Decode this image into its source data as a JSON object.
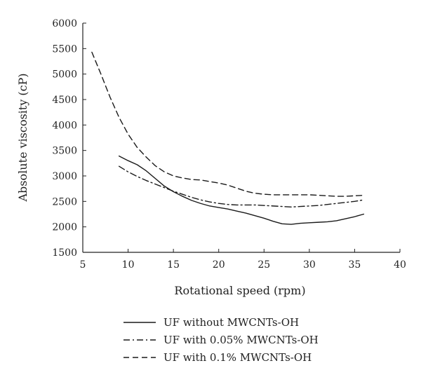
{
  "chart_data": {
    "type": "line",
    "title": "",
    "xlabel": "Rotational speed (rpm)",
    "ylabel": "Absolute viscosity (cP)",
    "xlim": [
      5,
      40
    ],
    "ylim": [
      1500,
      6000
    ],
    "xticks": [
      5,
      10,
      15,
      20,
      25,
      30,
      35,
      40
    ],
    "yticks": [
      1500,
      2000,
      2500,
      3000,
      3500,
      4000,
      4500,
      5000,
      5500,
      6000
    ],
    "grid": false,
    "legend_position": "bottom-left (below plot)",
    "series": [
      {
        "name": "UF without MWCNTs-OH",
        "style": "solid",
        "color": "#1a1a1a",
        "x": [
          9,
          10,
          11,
          12,
          13,
          14,
          15,
          16,
          17,
          18,
          19,
          20,
          21,
          22,
          23,
          24,
          25,
          26,
          27,
          28,
          29,
          30,
          31,
          32,
          33,
          34,
          35,
          36
        ],
        "y": [
          3390,
          3300,
          3220,
          3100,
          2950,
          2800,
          2690,
          2600,
          2520,
          2460,
          2410,
          2380,
          2350,
          2310,
          2270,
          2220,
          2170,
          2110,
          2060,
          2050,
          2070,
          2080,
          2090,
          2100,
          2120,
          2160,
          2200,
          2250
        ]
      },
      {
        "name": "UF with 0.05% MWCNTs-OH",
        "style": "dashdot",
        "color": "#1a1a1a",
        "x": [
          9,
          10,
          11,
          12,
          13,
          14,
          15,
          16,
          17,
          18,
          19,
          20,
          21,
          22,
          23,
          24,
          25,
          26,
          27,
          28,
          29,
          30,
          31,
          32,
          33,
          34,
          35,
          36
        ],
        "y": [
          3190,
          3080,
          2990,
          2910,
          2840,
          2770,
          2700,
          2640,
          2580,
          2530,
          2490,
          2460,
          2440,
          2430,
          2430,
          2430,
          2420,
          2410,
          2400,
          2390,
          2400,
          2410,
          2420,
          2440,
          2460,
          2480,
          2500,
          2530
        ]
      },
      {
        "name": "UF with 0.1% MWCNTs-OH",
        "style": "dashed",
        "color": "#1a1a1a",
        "x": [
          6,
          7,
          8,
          9,
          10,
          11,
          12,
          13,
          14,
          15,
          16,
          17,
          18,
          19,
          20,
          21,
          22,
          23,
          24,
          25,
          26,
          27,
          28,
          29,
          30,
          31,
          32,
          33,
          34,
          35,
          36
        ],
        "y": [
          5430,
          5000,
          4550,
          4150,
          3820,
          3560,
          3370,
          3200,
          3080,
          3000,
          2960,
          2930,
          2920,
          2890,
          2860,
          2820,
          2760,
          2700,
          2660,
          2640,
          2630,
          2630,
          2630,
          2630,
          2630,
          2620,
          2610,
          2600,
          2600,
          2610,
          2620
        ]
      }
    ]
  }
}
